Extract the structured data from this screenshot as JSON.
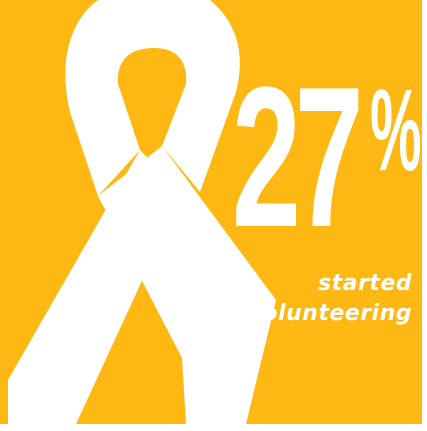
{
  "graphic": {
    "background_color": "#FDB813",
    "ribbon_color": "#FFFFFF",
    "icon": "awareness-ribbon-icon",
    "stat": {
      "value": "27",
      "unit": "%"
    },
    "caption": {
      "line1": "started",
      "line2": "volunteering"
    }
  }
}
